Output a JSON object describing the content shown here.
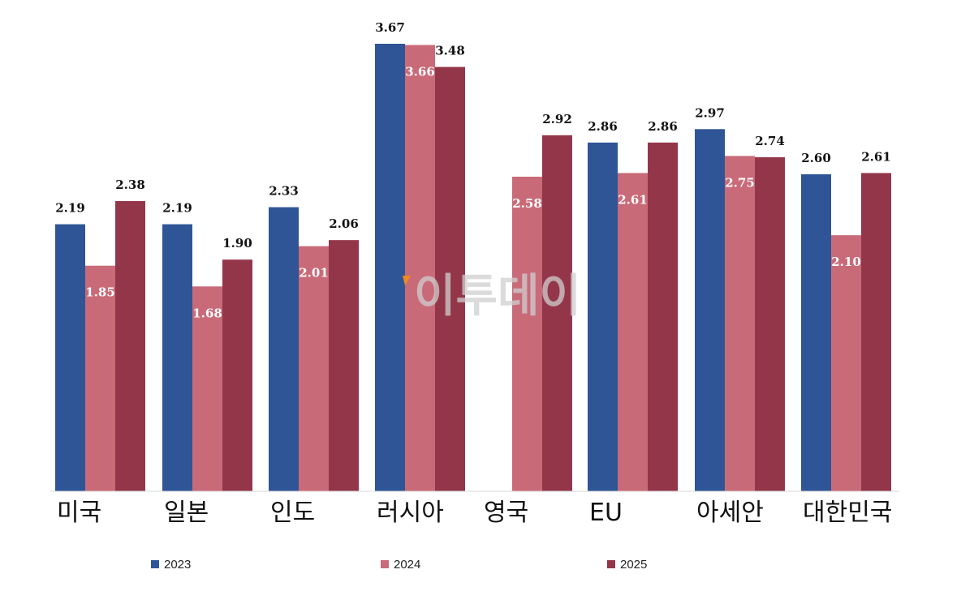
{
  "chart_data": {
    "type": "bar",
    "categories": [
      "미국",
      "일본",
      "인도",
      "러시아",
      "영국",
      "EU",
      "아세안",
      "대한민국"
    ],
    "series": [
      {
        "name": "2023",
        "color": "#2f5597",
        "values": [
          2.19,
          2.19,
          2.33,
          3.67,
          null,
          2.86,
          2.97,
          2.6
        ]
      },
      {
        "name": "2024",
        "color": "#c96a78",
        "values": [
          1.85,
          1.68,
          2.01,
          3.66,
          2.58,
          2.61,
          2.75,
          2.1
        ]
      },
      {
        "name": "2025",
        "color": "#94364a",
        "values": [
          2.38,
          1.9,
          2.06,
          3.48,
          2.92,
          2.86,
          2.74,
          2.61
        ]
      }
    ],
    "ylim": [
      0,
      3.67
    ],
    "grid": false,
    "legend_position": "bottom",
    "value_labels": [
      "2.19",
      "1.85",
      "2.38",
      "2.19",
      "1.68",
      "1.90",
      "2.33",
      "2.01",
      "2.06",
      "3.67",
      "3.66",
      "3.48",
      "2.58",
      "2.92",
      "2.86",
      "2.61",
      "2.86",
      "2.97",
      "2.75",
      "2.74",
      "2.60",
      "2.10",
      "2.61"
    ]
  },
  "watermark": {
    "text": "이투데이",
    "accent_color": "#f08a1c"
  }
}
